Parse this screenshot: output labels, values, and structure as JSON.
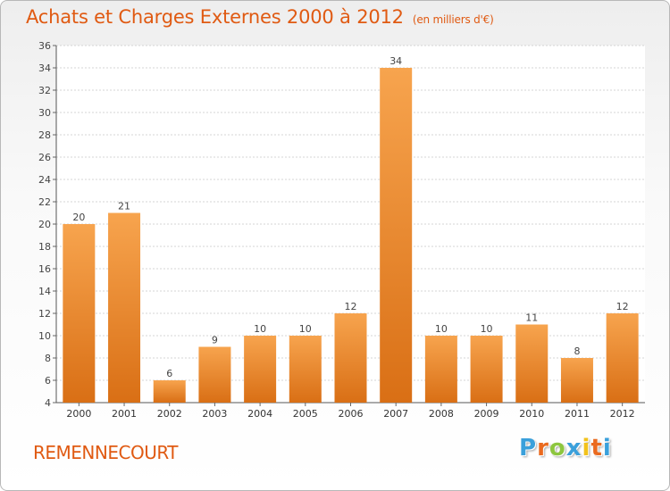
{
  "chart_data": {
    "type": "bar",
    "title": "Achats et Charges Externes 2000 à 2012",
    "unit_label": "(en milliers d'€)",
    "categories": [
      "2000",
      "2001",
      "2002",
      "2003",
      "2004",
      "2005",
      "2006",
      "2007",
      "2008",
      "2009",
      "2010",
      "2011",
      "2012"
    ],
    "values": [
      20,
      21,
      6,
      9,
      10,
      10,
      12,
      34,
      10,
      10,
      11,
      8,
      12
    ],
    "ylim": [
      4,
      36
    ],
    "yticks": [
      4,
      6,
      8,
      10,
      12,
      14,
      16,
      18,
      20,
      22,
      24,
      26,
      28,
      30,
      32,
      34,
      36
    ],
    "grid": true,
    "bar_color_top": "#f7a44e",
    "bar_color_bottom": "#d96f15"
  },
  "commune": "REMENNECOURT",
  "logo": {
    "text": "Proxiti",
    "colors": [
      "#3aa0db",
      "#ea6a1f",
      "#8dc63f",
      "#3aa0db",
      "#f2c21b",
      "#ea6a1f",
      "#3aa0db"
    ]
  }
}
